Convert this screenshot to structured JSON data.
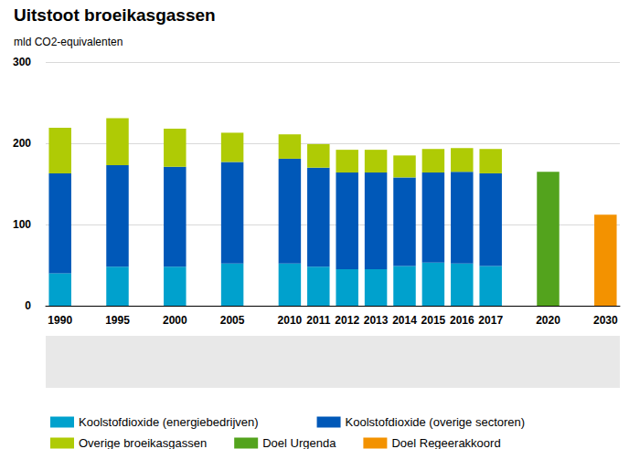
{
  "chart_data": {
    "type": "bar",
    "title": "Uitstoot broeikasgassen",
    "subtitle": "mld CO2-equivalenten",
    "categories": [
      "1990",
      null,
      "1995",
      null,
      "2000",
      null,
      "2005",
      null,
      "2010",
      "2011",
      "2012",
      "2013",
      "2014",
      "2015",
      "2016",
      "2017",
      null,
      "2020",
      null,
      "2030"
    ],
    "series": [
      {
        "name": "Koolstofdioxide (energiebedrijven)",
        "color": "#00a1cd",
        "values": [
          40,
          null,
          48,
          null,
          48,
          null,
          52,
          null,
          52,
          48,
          45,
          45,
          49,
          53,
          52,
          49,
          null,
          null,
          null,
          null
        ]
      },
      {
        "name": "Koolstofdioxide (overige sectoren)",
        "color": "#0058b8",
        "values": [
          123,
          null,
          125,
          null,
          123,
          null,
          125,
          null,
          129,
          122,
          119,
          119,
          109,
          111,
          113,
          114,
          null,
          null,
          null,
          null
        ]
      },
      {
        "name": "Overige broeikasgassen",
        "color": "#afcb05",
        "values": [
          56,
          null,
          58,
          null,
          47,
          null,
          36,
          null,
          30,
          29,
          28,
          28,
          27,
          29,
          29,
          30,
          null,
          null,
          null,
          null
        ]
      },
      {
        "name": "Doel Urgenda",
        "color": "#53a31d",
        "values": [
          null,
          null,
          null,
          null,
          null,
          null,
          null,
          null,
          null,
          null,
          null,
          null,
          null,
          null,
          null,
          null,
          null,
          165,
          null,
          null
        ]
      },
      {
        "name": "Doel Regeerakkoord",
        "color": "#f39200",
        "values": [
          null,
          null,
          null,
          null,
          null,
          null,
          null,
          null,
          null,
          null,
          null,
          null,
          null,
          null,
          null,
          null,
          null,
          null,
          null,
          112
        ]
      }
    ],
    "ylim": [
      0,
      300
    ],
    "yticks": [
      0,
      100,
      200,
      300
    ],
    "stacked": true,
    "grid": true,
    "legend": "bottom"
  }
}
